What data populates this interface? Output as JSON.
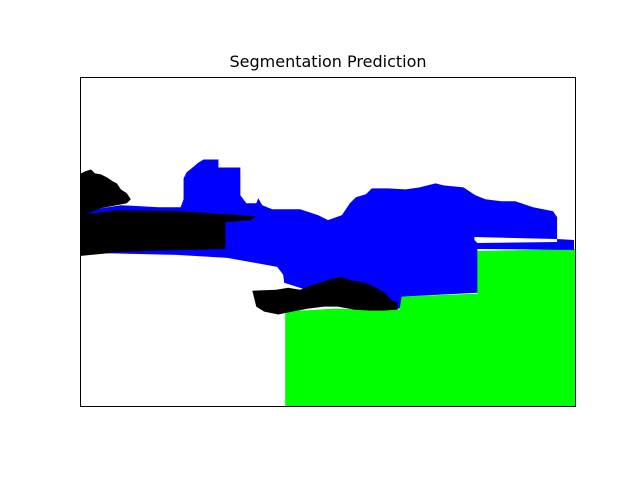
{
  "figure": {
    "title": "Segmentation Prediction"
  },
  "segmentation": {
    "classes": [
      {
        "id": "background",
        "color": "#ffffff"
      },
      {
        "id": "blue-region",
        "color": "#0000ff"
      },
      {
        "id": "green-region",
        "color": "#00ff00"
      },
      {
        "id": "black-region",
        "color": "#000000"
      }
    ]
  }
}
